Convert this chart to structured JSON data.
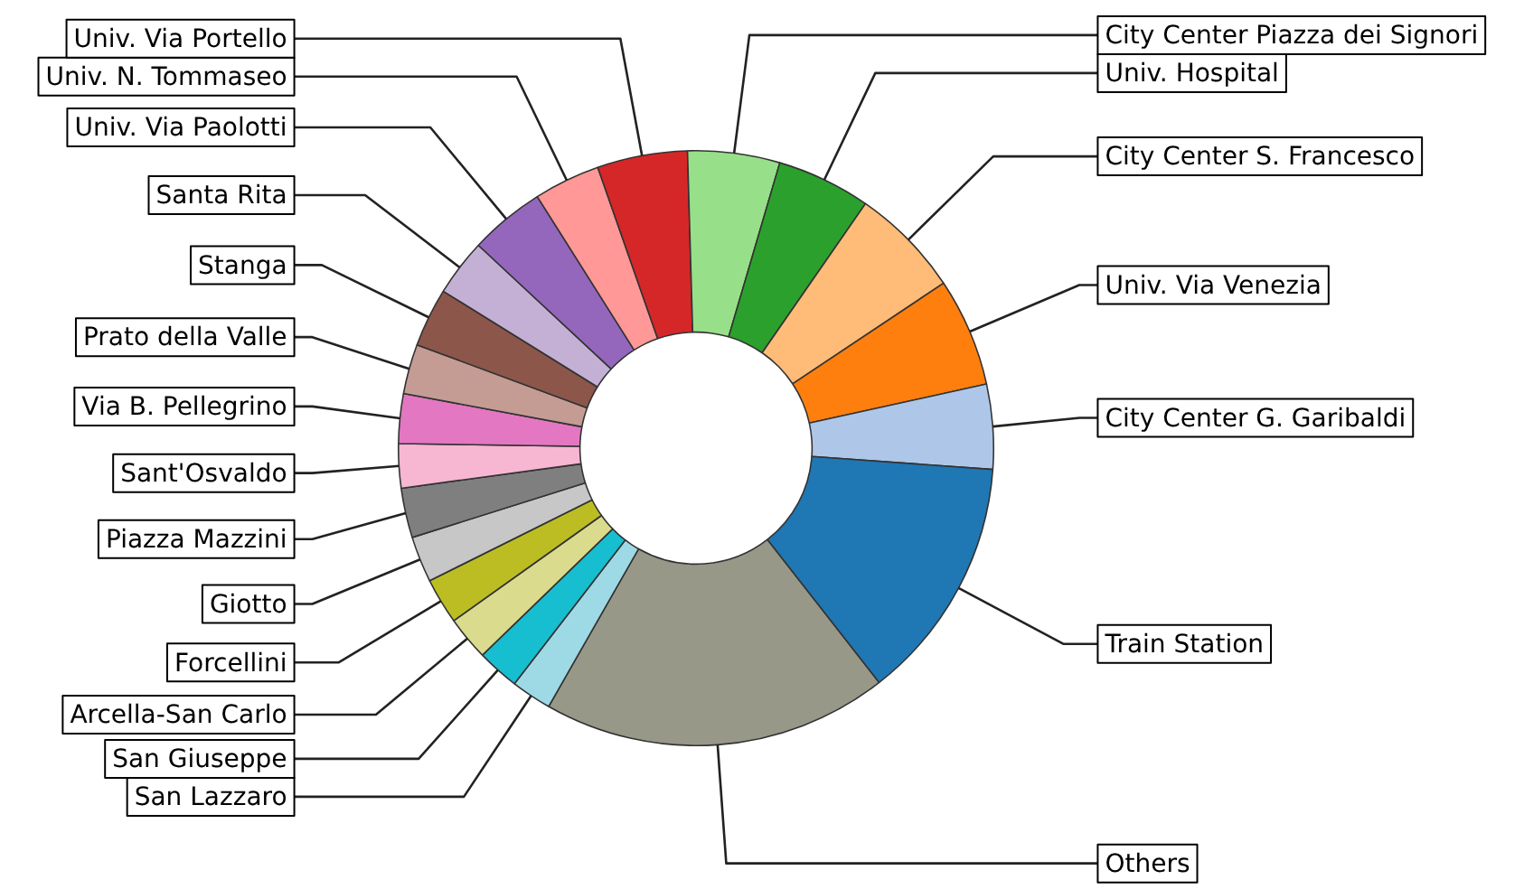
{
  "chart_data": {
    "type": "donut",
    "categories": [
      "Train Station",
      "City Center G. Garibaldi",
      "Univ. Via Venezia",
      "City Center S. Francesco",
      "Univ. Hospital",
      "City Center Piazza dei Signori",
      "Univ. Via Portello",
      "Univ. N. Tommaseo",
      "Univ. Via Paolotti",
      "Santa Rita",
      "Stanga",
      "Prato della Valle",
      "Via B. Pellegrino",
      "Sant'Osvaldo",
      "Piazza Mazzini",
      "Giotto",
      "Forcellini",
      "Arcella-San Carlo",
      "San Giuseppe",
      "San Lazzaro",
      "Others"
    ],
    "values": [
      13.3,
      4.6,
      5.9,
      6.0,
      5.1,
      5.0,
      4.9,
      3.6,
      4.1,
      3.1,
      3.2,
      2.7,
      2.7,
      2.4,
      2.7,
      2.5,
      2.5,
      2.4,
      2.3,
      2.2,
      18.8
    ],
    "colors": [
      "#1f77b4",
      "#aec7e8",
      "#ff7f0e",
      "#ffbb78",
      "#2ca02c",
      "#98df8a",
      "#d62728",
      "#ff9896",
      "#9467bd",
      "#c5b0d5",
      "#8c564b",
      "#c49c94",
      "#e377c2",
      "#f7b6d2",
      "#7f7f7f",
      "#c7c7c7",
      "#bcbd22",
      "#dbdb8d",
      "#17becf",
      "#9edae5",
      "#989888"
    ],
    "legend": false
  }
}
